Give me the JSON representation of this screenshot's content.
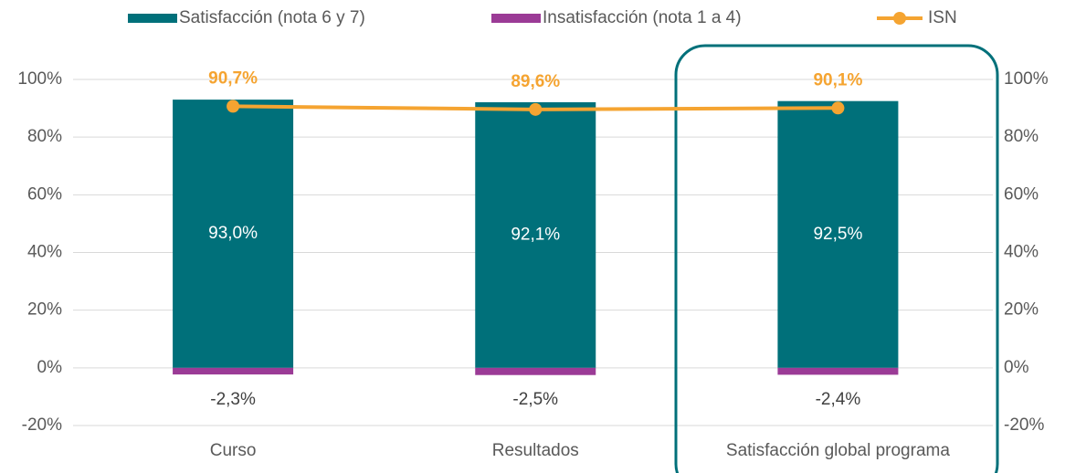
{
  "chart_data": {
    "type": "bar",
    "categories": [
      "Curso",
      "Resultados",
      "Satisfacción global programa"
    ],
    "series": [
      {
        "name": "Satisfacción (nota 6 y 7)",
        "color": "#00707a",
        "values": [
          93.0,
          92.1,
          92.5
        ],
        "value_labels": [
          "93,0%",
          "92,1%",
          "92,5%"
        ]
      },
      {
        "name": "Insatisfacción (nota 1 a 4)",
        "color": "#9b3b96",
        "values": [
          -2.3,
          -2.5,
          -2.4
        ],
        "value_labels": [
          "-2,3%",
          "-2,5%",
          "-2,4%"
        ]
      },
      {
        "name": "ISN",
        "type": "line",
        "axis": "y2",
        "color": "#f5a431",
        "values": [
          90.7,
          89.6,
          90.1
        ],
        "value_labels": [
          "90,7%",
          "89,6%",
          "90,1%"
        ]
      }
    ],
    "ylim": [
      -20,
      100
    ],
    "yticks": [
      {
        "value": -20,
        "label": "-20%"
      },
      {
        "value": 0,
        "label": "0%"
      },
      {
        "value": 20,
        "label": "20%"
      },
      {
        "value": 40,
        "label": "40%"
      },
      {
        "value": 60,
        "label": "60%"
      },
      {
        "value": 80,
        "label": "80%"
      },
      {
        "value": 100,
        "label": "100%"
      }
    ],
    "y2lim": [
      -20,
      100
    ],
    "y2ticks": [
      {
        "value": -20,
        "label": "-20%"
      },
      {
        "value": 0,
        "label": "0%"
      },
      {
        "value": 20,
        "label": "20%"
      },
      {
        "value": 40,
        "label": "40%"
      },
      {
        "value": 60,
        "label": "60%"
      },
      {
        "value": 80,
        "label": "80%"
      },
      {
        "value": 100,
        "label": "100%"
      }
    ],
    "grid": true,
    "legend": "top"
  }
}
